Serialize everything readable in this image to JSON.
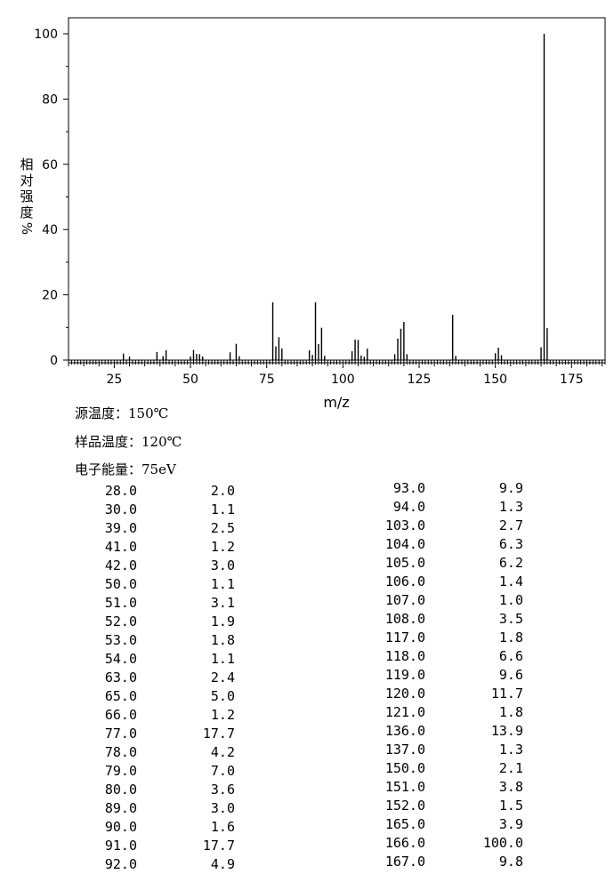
{
  "chart_data": {
    "type": "bar",
    "xlabel": "m/z",
    "ylabel": [
      "相",
      "对",
      "强",
      "度",
      "%"
    ],
    "xlim": [
      10,
      186
    ],
    "ylim": [
      0,
      100
    ],
    "x_ticks": [
      25,
      50,
      75,
      100,
      125,
      150,
      175
    ],
    "y_ticks": [
      0,
      20,
      40,
      60,
      80,
      100
    ],
    "peaks": [
      {
        "mz": 28,
        "ab": 2.0
      },
      {
        "mz": 30,
        "ab": 1.1
      },
      {
        "mz": 39,
        "ab": 2.5
      },
      {
        "mz": 41,
        "ab": 1.2
      },
      {
        "mz": 42,
        "ab": 3.0
      },
      {
        "mz": 50,
        "ab": 1.1
      },
      {
        "mz": 51,
        "ab": 3.1
      },
      {
        "mz": 52,
        "ab": 1.9
      },
      {
        "mz": 53,
        "ab": 1.8
      },
      {
        "mz": 54,
        "ab": 1.1
      },
      {
        "mz": 63,
        "ab": 2.4
      },
      {
        "mz": 65,
        "ab": 5.0
      },
      {
        "mz": 66,
        "ab": 1.2
      },
      {
        "mz": 77,
        "ab": 17.7
      },
      {
        "mz": 78,
        "ab": 4.2
      },
      {
        "mz": 79,
        "ab": 7.0
      },
      {
        "mz": 80,
        "ab": 3.6
      },
      {
        "mz": 89,
        "ab": 3.0
      },
      {
        "mz": 90,
        "ab": 1.6
      },
      {
        "mz": 91,
        "ab": 17.7
      },
      {
        "mz": 92,
        "ab": 4.9
      },
      {
        "mz": 93,
        "ab": 9.9
      },
      {
        "mz": 94,
        "ab": 1.3
      },
      {
        "mz": 103,
        "ab": 2.7
      },
      {
        "mz": 104,
        "ab": 6.3
      },
      {
        "mz": 105,
        "ab": 6.2
      },
      {
        "mz": 106,
        "ab": 1.4
      },
      {
        "mz": 107,
        "ab": 1.0
      },
      {
        "mz": 108,
        "ab": 3.5
      },
      {
        "mz": 117,
        "ab": 1.8
      },
      {
        "mz": 118,
        "ab": 6.6
      },
      {
        "mz": 119,
        "ab": 9.6
      },
      {
        "mz": 120,
        "ab": 11.7
      },
      {
        "mz": 121,
        "ab": 1.8
      },
      {
        "mz": 136,
        "ab": 13.9
      },
      {
        "mz": 137,
        "ab": 1.3
      },
      {
        "mz": 150,
        "ab": 2.1
      },
      {
        "mz": 151,
        "ab": 3.8
      },
      {
        "mz": 152,
        "ab": 1.5
      },
      {
        "mz": 165,
        "ab": 3.9
      },
      {
        "mz": 166,
        "ab": 100.0
      },
      {
        "mz": 167,
        "ab": 9.8
      }
    ]
  },
  "conditions": {
    "source_temp": "源温度：150℃",
    "sample_temp": "样品温度：120℃",
    "electron_energy": "电子能量：75eV"
  },
  "table_left": [
    [
      "28.0",
      "2.0"
    ],
    [
      "30.0",
      "1.1"
    ],
    [
      "39.0",
      "2.5"
    ],
    [
      "41.0",
      "1.2"
    ],
    [
      "42.0",
      "3.0"
    ],
    [
      "50.0",
      "1.1"
    ],
    [
      "51.0",
      "3.1"
    ],
    [
      "52.0",
      "1.9"
    ],
    [
      "53.0",
      "1.8"
    ],
    [
      "54.0",
      "1.1"
    ],
    [
      "63.0",
      "2.4"
    ],
    [
      "65.0",
      "5.0"
    ],
    [
      "66.0",
      "1.2"
    ],
    [
      "77.0",
      "17.7"
    ],
    [
      "78.0",
      "4.2"
    ],
    [
      "79.0",
      "7.0"
    ],
    [
      "80.0",
      "3.6"
    ],
    [
      "89.0",
      "3.0"
    ],
    [
      "90.0",
      "1.6"
    ],
    [
      "91.0",
      "17.7"
    ],
    [
      "92.0",
      "4.9"
    ]
  ],
  "table_right": [
    [
      "93.0",
      "9.9"
    ],
    [
      "94.0",
      "1.3"
    ],
    [
      "103.0",
      "2.7"
    ],
    [
      "104.0",
      "6.3"
    ],
    [
      "105.0",
      "6.2"
    ],
    [
      "106.0",
      "1.4"
    ],
    [
      "107.0",
      "1.0"
    ],
    [
      "108.0",
      "3.5"
    ],
    [
      "117.0",
      "1.8"
    ],
    [
      "118.0",
      "6.6"
    ],
    [
      "119.0",
      "9.6"
    ],
    [
      "120.0",
      "11.7"
    ],
    [
      "121.0",
      "1.8"
    ],
    [
      "136.0",
      "13.9"
    ],
    [
      "137.0",
      "1.3"
    ],
    [
      "150.0",
      "2.1"
    ],
    [
      "151.0",
      "3.8"
    ],
    [
      "152.0",
      "1.5"
    ],
    [
      "165.0",
      "3.9"
    ],
    [
      "166.0",
      "100.0"
    ],
    [
      "167.0",
      "9.8"
    ]
  ]
}
